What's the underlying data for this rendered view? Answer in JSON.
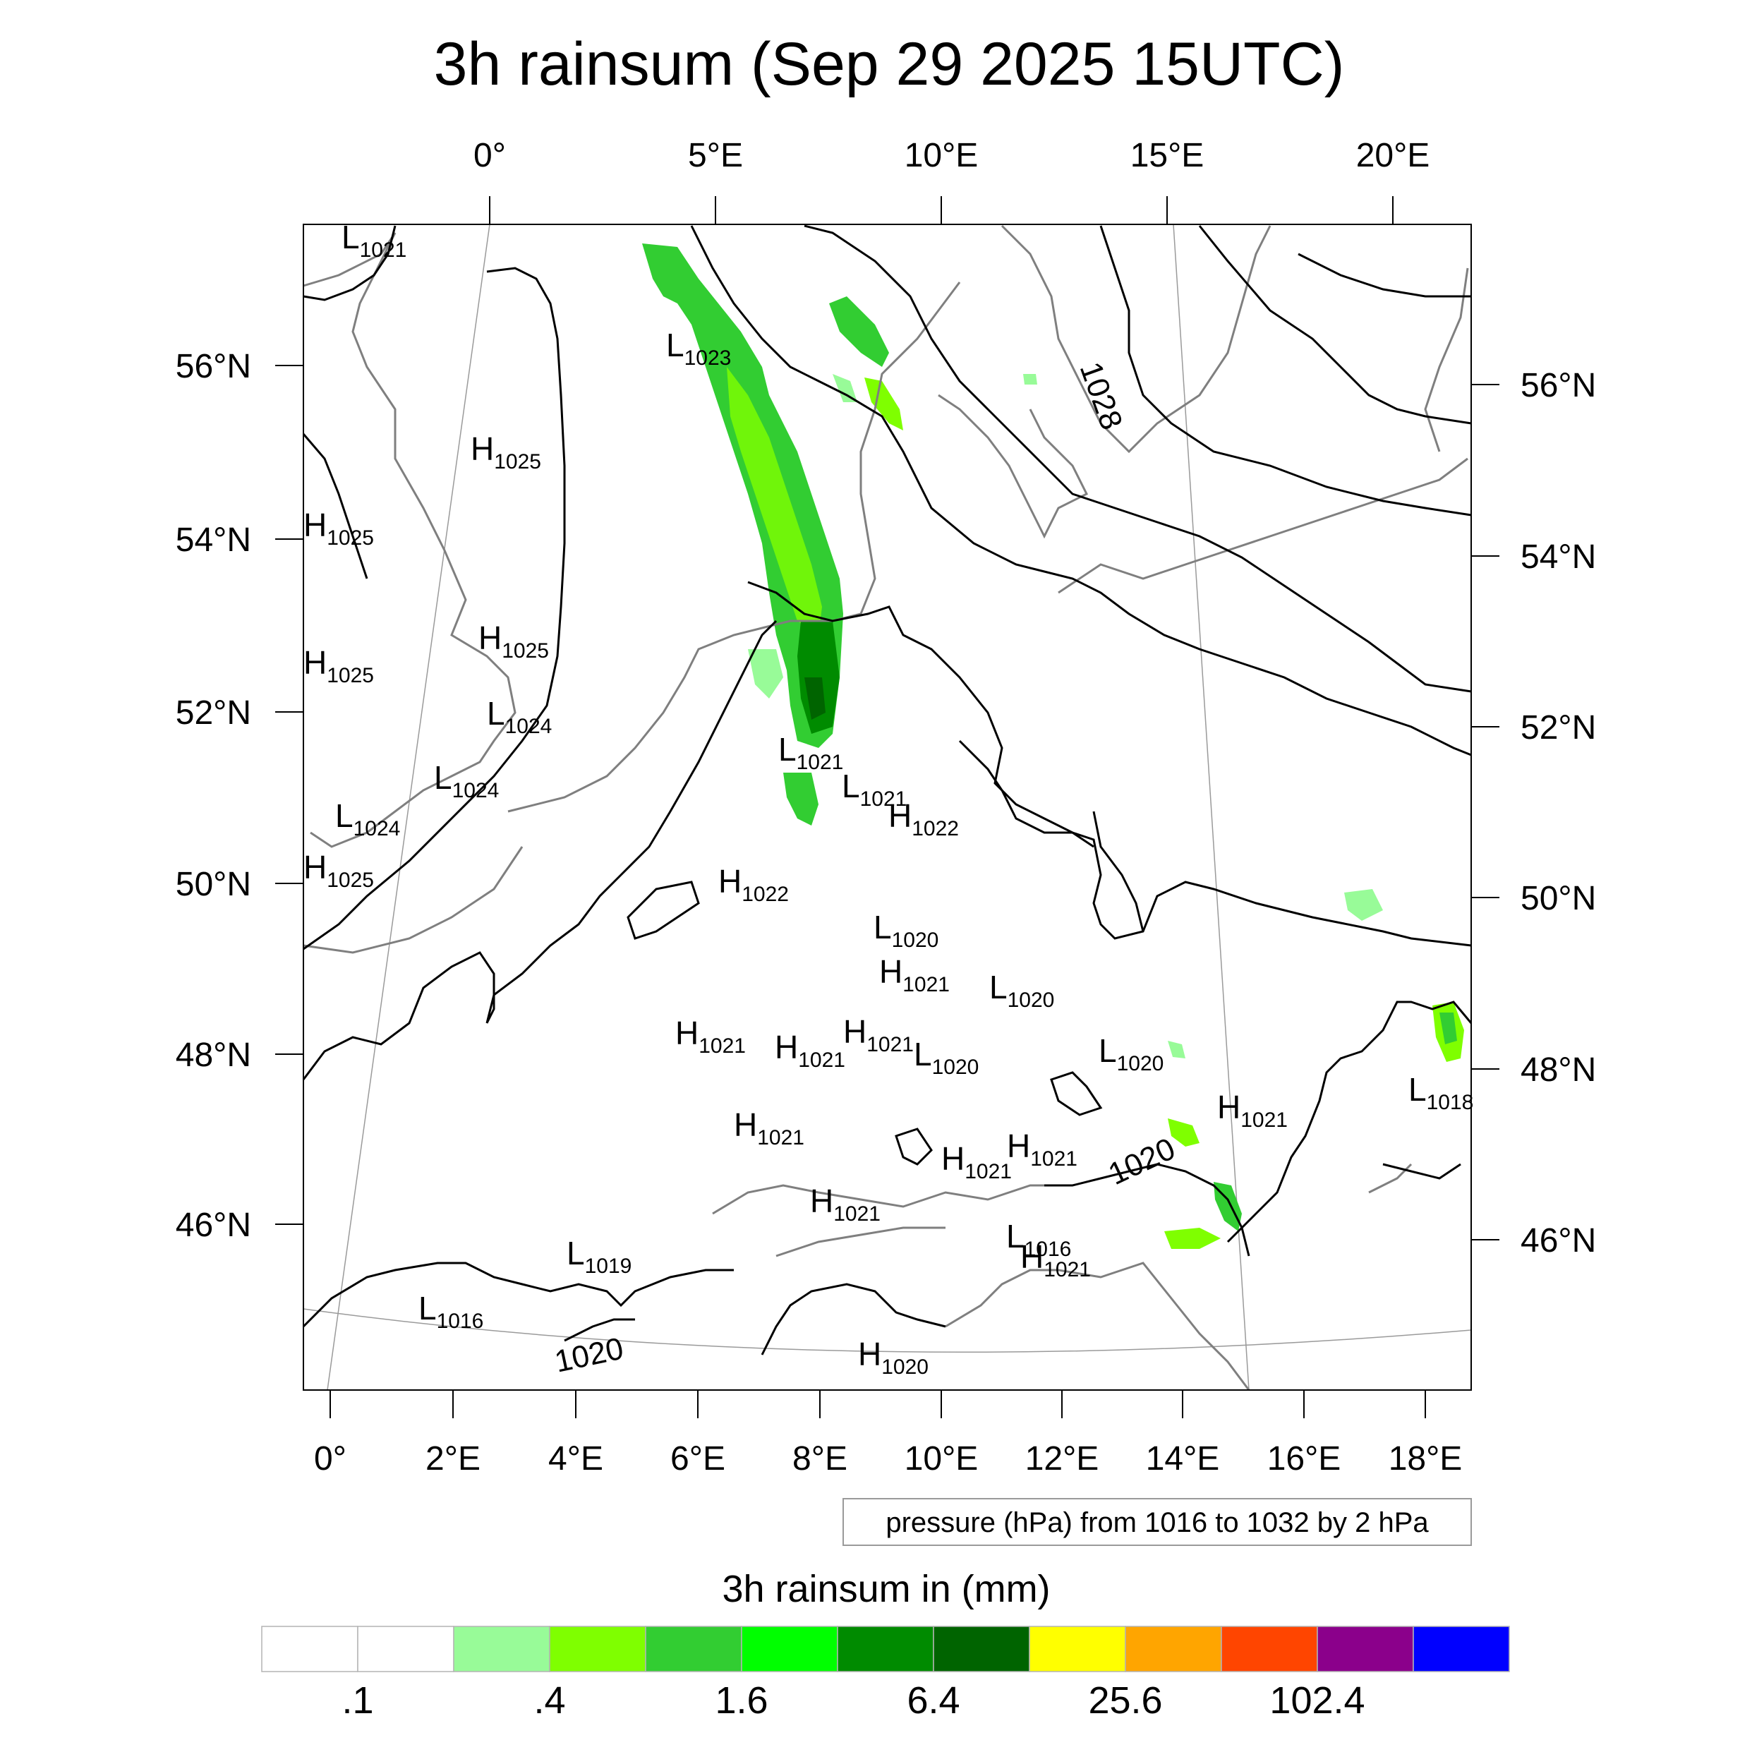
{
  "title": "3h rainsum (Sep 29 2025 15UTC)",
  "top_lon_ticks": [
    "0°",
    "5°E",
    "10°E",
    "15°E",
    "20°E"
  ],
  "bottom_lon_ticks": [
    "0°",
    "2°E",
    "4°E",
    "6°E",
    "8°E",
    "10°E",
    "12°E",
    "14°E",
    "16°E",
    "18°E"
  ],
  "left_lat_ticks": [
    "56°N",
    "54°N",
    "52°N",
    "50°N",
    "48°N",
    "46°N"
  ],
  "right_lat_ticks": [
    "56°N",
    "54°N",
    "52°N",
    "50°N",
    "48°N",
    "46°N"
  ],
  "pressure_note": "pressure (hPa) from 1016 to 1032 by 2 hPa",
  "colorbar": {
    "title": "3h rainsum in (mm)",
    "colors": [
      "#ffffff",
      "#ffffff",
      "#98fb98",
      "#7fff00",
      "#32cd32",
      "#00ff00",
      "#008b00",
      "#006400",
      "#ffff00",
      "#ffa500",
      "#ff4500",
      "#8b008b",
      "#0000ff"
    ],
    "tick_labels": [
      ".1",
      ".4",
      "1.6",
      "6.4",
      "25.6",
      "102.4"
    ]
  },
  "pressure_centers": [
    {
      "type": "L",
      "value": "1021"
    },
    {
      "type": "L",
      "value": "1023"
    },
    {
      "type": "H",
      "value": "1025"
    },
    {
      "type": "H",
      "value": "1025"
    },
    {
      "type": "H",
      "value": "1025"
    },
    {
      "type": "H",
      "value": "1025"
    },
    {
      "type": "L",
      "value": "1024"
    },
    {
      "type": "L",
      "value": "1024"
    },
    {
      "type": "L",
      "value": "1024"
    },
    {
      "type": "H",
      "value": "1025"
    },
    {
      "type": "L",
      "value": "1021"
    },
    {
      "type": "L",
      "value": "1021"
    },
    {
      "type": "H",
      "value": "1022"
    },
    {
      "type": "H",
      "value": "1022"
    },
    {
      "type": "L",
      "value": "1020"
    },
    {
      "type": "H",
      "value": "1021"
    },
    {
      "type": "L",
      "value": "1020"
    },
    {
      "type": "H",
      "value": "1021"
    },
    {
      "type": "H",
      "value": "1021"
    },
    {
      "type": "H",
      "value": "1021"
    },
    {
      "type": "L",
      "value": "1020"
    },
    {
      "type": "L",
      "value": "1020"
    },
    {
      "type": "H",
      "value": "1021"
    },
    {
      "type": "L",
      "value": "1018"
    },
    {
      "type": "H",
      "value": "1021"
    },
    {
      "type": "H",
      "value": "1021"
    },
    {
      "type": "H",
      "value": "1021"
    },
    {
      "type": "H",
      "value": "1021"
    },
    {
      "type": "L",
      "value": "1016"
    },
    {
      "type": "H",
      "value": "1021"
    },
    {
      "type": "L",
      "value": "1019"
    },
    {
      "type": "L",
      "value": "1016"
    },
    {
      "type": "H",
      "value": "1020"
    }
  ],
  "contour_labels": [
    "1028",
    "1020",
    "1020"
  ]
}
